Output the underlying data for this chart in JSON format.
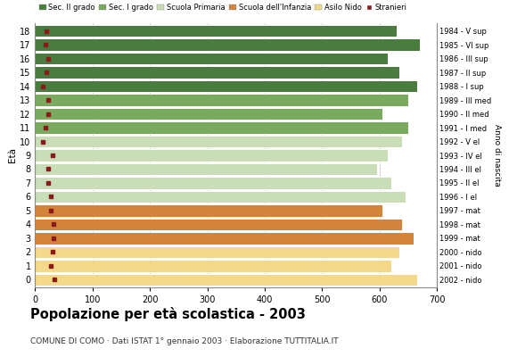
{
  "ages": [
    18,
    17,
    16,
    15,
    14,
    13,
    12,
    11,
    10,
    9,
    8,
    7,
    6,
    5,
    4,
    3,
    2,
    1,
    0
  ],
  "bar_values": [
    630,
    670,
    615,
    635,
    665,
    650,
    605,
    650,
    640,
    615,
    595,
    620,
    645,
    605,
    640,
    660,
    635,
    620,
    665
  ],
  "stranieri_values": [
    20,
    18,
    22,
    20,
    14,
    22,
    22,
    18,
    14,
    30,
    22,
    22,
    28,
    28,
    32,
    32,
    30,
    28,
    34
  ],
  "bar_colors": [
    "#4a7c3f",
    "#4a7c3f",
    "#4a7c3f",
    "#4a7c3f",
    "#4a7c3f",
    "#7aaa5e",
    "#7aaa5e",
    "#7aaa5e",
    "#c8ddb8",
    "#c8ddb8",
    "#c8ddb8",
    "#c8ddb8",
    "#c8ddb8",
    "#d4843a",
    "#d4843a",
    "#d4843a",
    "#f5d98a",
    "#f5d98a",
    "#f5d98a"
  ],
  "anno_labels": [
    "1984 - V sup",
    "1985 - VI sup",
    "1986 - III sup",
    "1987 - II sup",
    "1988 - I sup",
    "1989 - III med",
    "1990 - II med",
    "1991 - I med",
    "1992 - V el",
    "1993 - IV el",
    "1994 - III el",
    "1995 - II el",
    "1996 - I el",
    "1997 - mat",
    "1998 - mat",
    "1999 - mat",
    "2000 - nido",
    "2001 - nido",
    "2002 - nido"
  ],
  "legend_labels": [
    "Sec. II grado",
    "Sec. I grado",
    "Scuola Primaria",
    "Scuola dell'Infanzia",
    "Asilo Nido",
    "Stranieri"
  ],
  "legend_colors": [
    "#4a7c3f",
    "#7aaa5e",
    "#c8ddb8",
    "#d4843a",
    "#f5d98a",
    "#8b1a1a"
  ],
  "ylabel": "Età",
  "right_ylabel": "Anno di nascita",
  "title": "Popolazione per età scolastica - 2003",
  "subtitle": "COMUNE DI COMO · Dati ISTAT 1° gennaio 2003 · Elaborazione TUTTITALIA.IT",
  "xlim": [
    0,
    700
  ],
  "xticks": [
    0,
    100,
    200,
    300,
    400,
    500,
    600,
    700
  ],
  "stranieri_color": "#8b1a1a",
  "bg_color": "#ffffff",
  "grid_color": "#b0b0b0",
  "bar_height": 0.88
}
